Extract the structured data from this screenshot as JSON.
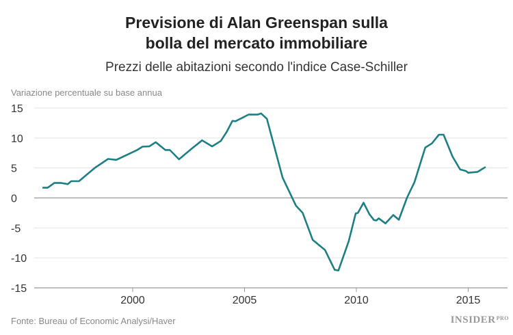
{
  "chart_data": {
    "type": "line",
    "title": "Previsione di Alan Greenspan sulla bolla del mercato immobiliare",
    "title_lines": [
      "Previsione di Alan Greenspan sulla",
      "bolla del mercato immobiliare"
    ],
    "subtitle": "Prezzi delle abitazioni secondo l'indice Case-Schiller",
    "ylabel": "Variazione percentuale su base annua",
    "xlabel": "",
    "ylim": [
      -15,
      15
    ],
    "xlim": [
      1995.5,
      2017.2
    ],
    "yticks": [
      15,
      10,
      5,
      0,
      -5,
      -10,
      -15
    ],
    "xticks": [
      2000,
      2005,
      2010,
      2015
    ],
    "grid": true,
    "color": "#1b7f83",
    "series": [
      {
        "x": [
          1996.0,
          1996.2,
          1996.5,
          1996.8,
          1997.1,
          1997.25,
          1997.6,
          1998.3,
          1998.9,
          1999.27,
          2000.2,
          2000.44,
          2000.74,
          2001.03,
          2001.46,
          2001.66,
          2002.07,
          2002.63,
          2003.1,
          2003.55,
          2003.94,
          2004.2,
          2004.46,
          2004.6,
          2005.18,
          2005.59,
          2005.74,
          2006.0,
          2006.7,
          2007.3,
          2007.6,
          2008.05,
          2008.6,
          2009.03,
          2009.2,
          2009.66,
          2009.97,
          2010.07,
          2010.32,
          2010.58,
          2010.79,
          2010.9,
          2011.0,
          2011.3,
          2011.65,
          2011.9,
          2012.26,
          2012.6,
          2013.08,
          2013.38,
          2013.69,
          2013.9,
          2014.3,
          2014.64,
          2014.9,
          2015.0,
          2015.42,
          2015.75
        ],
        "y": [
          1.7,
          1.7,
          2.5,
          2.5,
          2.3,
          2.8,
          2.8,
          5.0,
          6.5,
          6.35,
          8.0,
          8.55,
          8.6,
          9.3,
          8.0,
          8.0,
          6.45,
          8.2,
          9.6,
          8.6,
          9.5,
          11.0,
          12.85,
          12.8,
          13.9,
          13.9,
          14.1,
          13.2,
          3.4,
          -1.3,
          -2.5,
          -7.0,
          -8.7,
          -12.0,
          -12.1,
          -7.2,
          -2.6,
          -2.5,
          -0.8,
          -2.7,
          -3.7,
          -3.75,
          -3.4,
          -4.25,
          -2.85,
          -3.65,
          0.0,
          2.65,
          8.4,
          9.1,
          10.55,
          10.55,
          6.9,
          4.75,
          4.5,
          4.2,
          4.35,
          5.1
        ]
      }
    ]
  },
  "source": "Fonte: Bureau of Economic Analysi/Haver",
  "logo": {
    "main": "INSIDER",
    "sup": "PRO"
  }
}
